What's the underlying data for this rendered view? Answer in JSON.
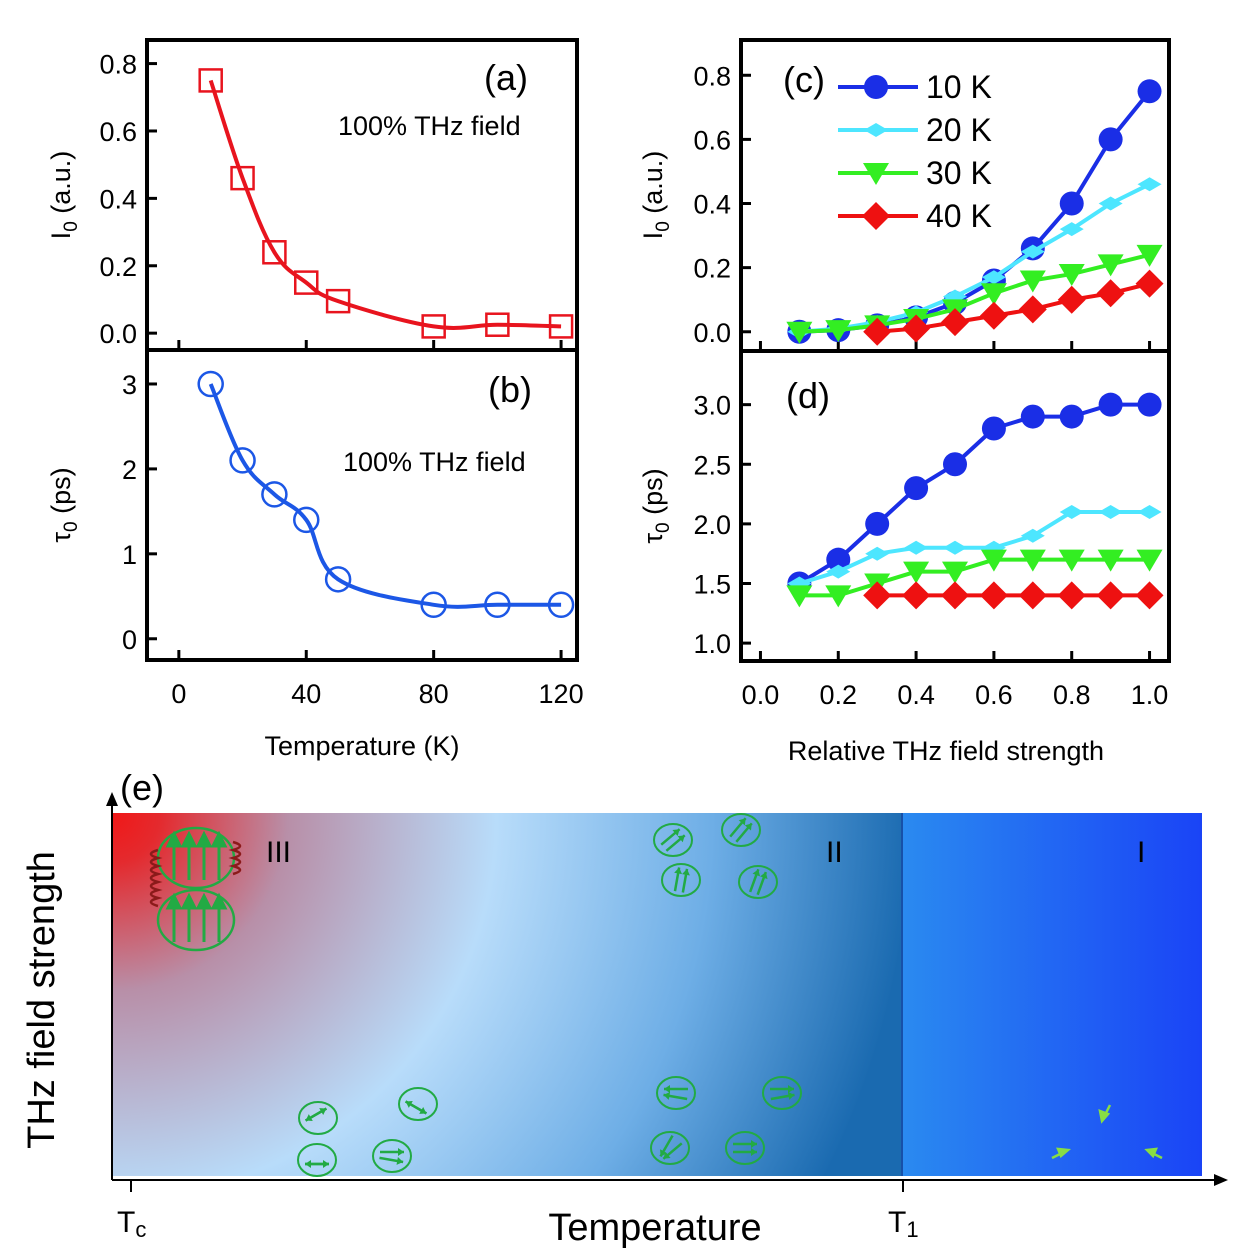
{
  "colors": {
    "red": "#e8141e",
    "blue": "#1c57e6",
    "navy": "#1a2ee6",
    "cyan": "#4de6ff",
    "green": "#33ee22",
    "diamond_red": "#ee1111",
    "spin_green": "#22aa44",
    "grad_red": "#f01818",
    "grad_light": "#b8dcfa",
    "grad_dark": "#1a6ab0",
    "region1": "#2266ee"
  },
  "chart_data": [
    {
      "id": "a",
      "type": "line",
      "panel_label": "(a)",
      "annotation": "100% THz field",
      "ylabel_main": "I",
      "ylabel_sub": "0",
      "ylabel_rest": " (a.u.)",
      "xlabel": "",
      "xlim": [
        -10,
        125
      ],
      "ylim": [
        -0.05,
        0.87
      ],
      "yticks": [
        0.0,
        0.2,
        0.4,
        0.6,
        0.8
      ],
      "ytick_labels": [
        "0.0",
        "0.2",
        "0.4",
        "0.6",
        "0.8"
      ],
      "xticks": [
        0,
        40,
        80,
        120
      ],
      "marker": "open-square",
      "series": [
        {
          "name": "I0",
          "color": "#e8141e",
          "x": [
            10,
            20,
            30,
            40,
            50,
            80,
            100,
            120
          ],
          "y": [
            0.75,
            0.46,
            0.24,
            0.15,
            0.095,
            0.02,
            0.025,
            0.02
          ]
        }
      ]
    },
    {
      "id": "b",
      "type": "line",
      "panel_label": "(b)",
      "annotation": "100% THz field",
      "ylabel_main": "τ",
      "ylabel_sub": "0",
      "ylabel_rest": " (ps)",
      "xlabel": "Temperature (K)",
      "xlim": [
        -10,
        125
      ],
      "ylim": [
        -0.25,
        3.4
      ],
      "yticks": [
        0,
        1,
        2,
        3
      ],
      "ytick_labels": [
        "0",
        "1",
        "2",
        "3"
      ],
      "xticks": [
        0,
        40,
        80,
        120
      ],
      "xtick_labels": [
        "0",
        "40",
        "80",
        "120"
      ],
      "marker": "open-circle",
      "series": [
        {
          "name": "tau0",
          "color": "#1c57e6",
          "x": [
            10,
            20,
            30,
            40,
            50,
            80,
            100,
            120
          ],
          "y": [
            3.0,
            2.1,
            1.7,
            1.4,
            0.7,
            0.4,
            0.4,
            0.4
          ]
        }
      ]
    },
    {
      "id": "c",
      "type": "line",
      "panel_label": "(c)",
      "ylabel_main": "I",
      "ylabel_sub": "0",
      "ylabel_rest": " (a.u.)",
      "xlabel": "",
      "xlim": [
        -0.05,
        1.05
      ],
      "ylim": [
        -0.06,
        0.91
      ],
      "yticks": [
        0.0,
        0.2,
        0.4,
        0.6,
        0.8
      ],
      "ytick_labels": [
        "0.0",
        "0.2",
        "0.4",
        "0.6",
        "0.8"
      ],
      "xticks": [
        0.0,
        0.2,
        0.4,
        0.6,
        0.8,
        1.0
      ],
      "legend": "top-left",
      "series": [
        {
          "name": "10 K",
          "color": "#1a2ee6",
          "marker": "circle",
          "x": [
            0.1,
            0.2,
            0.3,
            0.4,
            0.5,
            0.6,
            0.7,
            0.8,
            0.9,
            1.0
          ],
          "y": [
            0.0,
            0.005,
            0.02,
            0.045,
            0.09,
            0.16,
            0.26,
            0.4,
            0.6,
            0.75
          ]
        },
        {
          "name": "20 K",
          "color": "#4de6ff",
          "marker": "diamond-small",
          "x": [
            0.1,
            0.2,
            0.3,
            0.4,
            0.5,
            0.6,
            0.7,
            0.8,
            0.9,
            1.0
          ],
          "y": [
            0.0,
            0.01,
            0.03,
            0.06,
            0.11,
            0.17,
            0.25,
            0.32,
            0.4,
            0.46
          ]
        },
        {
          "name": "30 K",
          "color": "#33ee22",
          "marker": "triangle-down",
          "x": [
            0.1,
            0.2,
            0.3,
            0.4,
            0.5,
            0.6,
            0.7,
            0.8,
            0.9,
            1.0
          ],
          "y": [
            0.0,
            0.005,
            0.02,
            0.04,
            0.07,
            0.12,
            0.16,
            0.18,
            0.21,
            0.24
          ]
        },
        {
          "name": "40 K",
          "color": "#ee1111",
          "marker": "diamond",
          "x": [
            0.3,
            0.4,
            0.5,
            0.6,
            0.7,
            0.8,
            0.9,
            1.0
          ],
          "y": [
            0.0,
            0.01,
            0.03,
            0.05,
            0.07,
            0.1,
            0.12,
            0.15
          ]
        }
      ]
    },
    {
      "id": "d",
      "type": "line",
      "panel_label": "(d)",
      "ylabel_main": "τ",
      "ylabel_sub": "0",
      "ylabel_rest": " (ps)",
      "xlabel": "Relative THz field strength",
      "xlim": [
        -0.05,
        1.05
      ],
      "ylim": [
        0.85,
        3.45
      ],
      "yticks": [
        1.0,
        1.5,
        2.0,
        2.5,
        3.0
      ],
      "ytick_labels": [
        "1.0",
        "1.5",
        "2.0",
        "2.5",
        "3.0"
      ],
      "xticks": [
        0.0,
        0.2,
        0.4,
        0.6,
        0.8,
        1.0
      ],
      "xtick_labels": [
        "0.0",
        "0.2",
        "0.4",
        "0.6",
        "0.8",
        "1.0"
      ],
      "series": [
        {
          "name": "10 K",
          "color": "#1a2ee6",
          "marker": "circle",
          "x": [
            0.1,
            0.2,
            0.3,
            0.4,
            0.5,
            0.6,
            0.7,
            0.8,
            0.9,
            1.0
          ],
          "y": [
            1.5,
            1.7,
            2.0,
            2.3,
            2.5,
            2.8,
            2.9,
            2.9,
            3.0,
            3.0
          ]
        },
        {
          "name": "20 K",
          "color": "#4de6ff",
          "marker": "diamond-small",
          "x": [
            0.1,
            0.2,
            0.3,
            0.4,
            0.5,
            0.6,
            0.7,
            0.8,
            0.9,
            1.0
          ],
          "y": [
            1.5,
            1.6,
            1.75,
            1.8,
            1.8,
            1.8,
            1.9,
            2.1,
            2.1,
            2.1
          ]
        },
        {
          "name": "30 K",
          "color": "#33ee22",
          "marker": "triangle-down",
          "x": [
            0.1,
            0.2,
            0.3,
            0.4,
            0.5,
            0.6,
            0.7,
            0.8,
            0.9,
            1.0
          ],
          "y": [
            1.4,
            1.4,
            1.5,
            1.6,
            1.6,
            1.7,
            1.7,
            1.7,
            1.7,
            1.7
          ]
        },
        {
          "name": "40 K",
          "color": "#ee1111",
          "marker": "diamond",
          "x": [
            0.3,
            0.4,
            0.5,
            0.6,
            0.7,
            0.8,
            0.9,
            1.0
          ],
          "y": [
            1.4,
            1.4,
            1.4,
            1.4,
            1.4,
            1.4,
            1.4,
            1.4
          ]
        }
      ]
    }
  ],
  "diagram_e": {
    "panel_label": "(e)",
    "ylabel": "THz field strength",
    "xlabel": "Temperature",
    "tick_left_main": "T",
    "tick_left_sub": "c",
    "tick_right_main": "T",
    "tick_right_sub": "1",
    "region_labels": [
      "III",
      "II",
      "I"
    ]
  }
}
